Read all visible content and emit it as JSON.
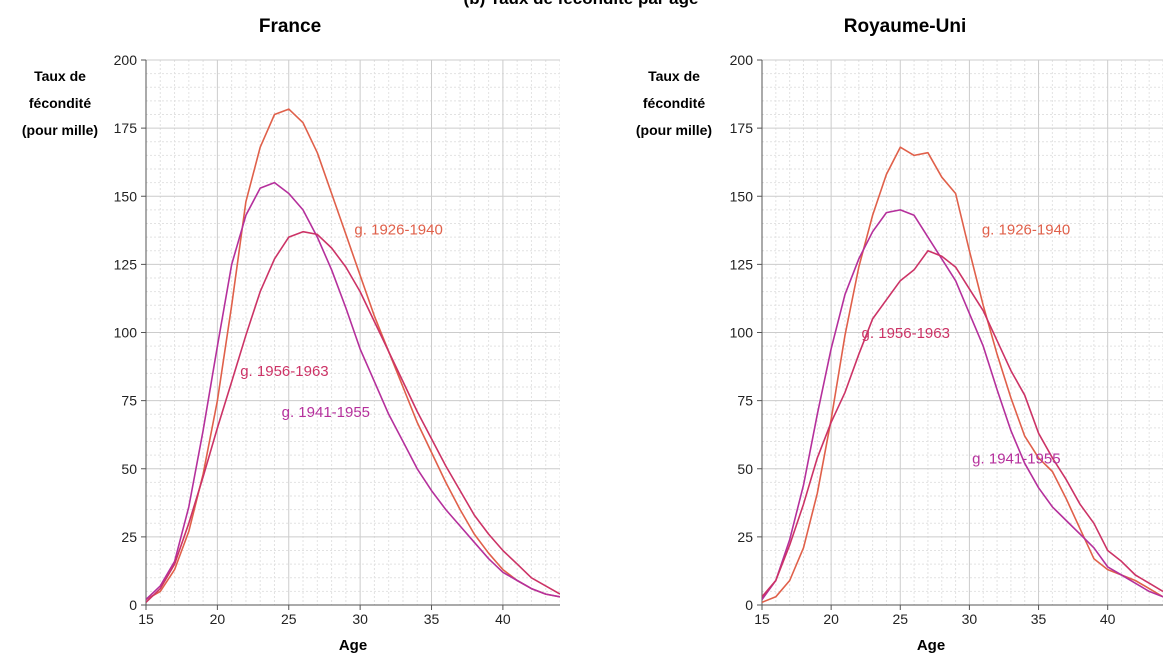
{
  "figure": {
    "top_title": "(b) Taux de fécondité par âge"
  },
  "chart_data": [
    {
      "type": "line",
      "title": "France",
      "xlabel": "Age",
      "ylabel_lines": [
        "Taux de",
        "fécondité",
        "(pour mille)"
      ],
      "xlim": [
        15,
        44
      ],
      "ylim": [
        0,
        200
      ],
      "x_ticks": [
        15,
        20,
        25,
        30,
        35,
        40
      ],
      "y_ticks": [
        0,
        25,
        50,
        75,
        100,
        125,
        150,
        175,
        200
      ],
      "grid": true,
      "series": [
        {
          "name": "g. 1926-1940",
          "color": "#e0604a",
          "x": [
            15,
            16,
            17,
            18,
            19,
            20,
            21,
            22,
            23,
            24,
            25,
            26,
            27,
            28,
            29,
            30,
            31,
            32,
            33,
            34,
            35,
            36,
            37,
            38,
            39,
            40,
            41,
            42,
            43,
            44
          ],
          "values": [
            2,
            5,
            13,
            27,
            48,
            75,
            110,
            148,
            168,
            180,
            182,
            177,
            166,
            151,
            136,
            121,
            106,
            93,
            80,
            67,
            56,
            45,
            35,
            26,
            19,
            13,
            9,
            6,
            4,
            3
          ]
        },
        {
          "name": "g. 1941-1955",
          "color": "#b5309c",
          "x": [
            15,
            16,
            17,
            18,
            19,
            20,
            21,
            22,
            23,
            24,
            25,
            26,
            27,
            28,
            29,
            30,
            31,
            32,
            33,
            34,
            35,
            36,
            37,
            38,
            39,
            40,
            41,
            42,
            43,
            44
          ],
          "values": [
            2,
            7,
            16,
            36,
            64,
            95,
            125,
            143,
            153,
            155,
            151,
            145,
            135,
            123,
            109,
            94,
            82,
            70,
            60,
            50,
            42,
            35,
            29,
            23,
            17,
            12,
            9,
            6,
            4,
            3
          ]
        },
        {
          "name": "g. 1956-1963",
          "color": "#cc3366",
          "x": [
            15,
            16,
            17,
            18,
            19,
            20,
            21,
            22,
            23,
            24,
            25,
            26,
            27,
            28,
            29,
            30,
            31,
            32,
            33,
            34,
            35,
            36,
            37,
            38,
            39,
            40,
            41,
            42,
            43,
            44
          ],
          "values": [
            1,
            6,
            15,
            30,
            47,
            65,
            82,
            99,
            115,
            127,
            135,
            137,
            136,
            131,
            124,
            115,
            104,
            93,
            82,
            71,
            61,
            51,
            42,
            33,
            26,
            20,
            15,
            10,
            7,
            4
          ]
        }
      ],
      "annotations": [
        {
          "text": "g. 1926-1940",
          "series": "g. 1926-1940",
          "x": 29.6,
          "y": 136
        },
        {
          "text": "g. 1956-1963",
          "series": "g. 1956-1963",
          "x": 21.6,
          "y": 84
        },
        {
          "text": "g. 1941-1955",
          "series": "g. 1941-1955",
          "x": 24.5,
          "y": 69
        }
      ]
    },
    {
      "type": "line",
      "title": "Royaume-Uni",
      "xlabel": "Age",
      "ylabel_lines": [
        "Taux de",
        "fécondité",
        "(pour mille)"
      ],
      "xlim": [
        15,
        44
      ],
      "ylim": [
        0,
        200
      ],
      "x_ticks": [
        15,
        20,
        25,
        30,
        35,
        40
      ],
      "y_ticks": [
        0,
        25,
        50,
        75,
        100,
        125,
        150,
        175,
        200
      ],
      "grid": true,
      "series": [
        {
          "name": "g. 1926-1940",
          "color": "#e0604a",
          "x": [
            15,
            16,
            17,
            18,
            19,
            20,
            21,
            22,
            23,
            24,
            25,
            26,
            27,
            28,
            29,
            30,
            31,
            32,
            33,
            34,
            35,
            36,
            37,
            38,
            39,
            40,
            41,
            42,
            43,
            44
          ],
          "values": [
            1,
            3,
            9,
            21,
            41,
            68,
            99,
            124,
            143,
            158,
            168,
            165,
            166,
            157,
            151,
            130,
            110,
            92,
            76,
            62,
            54,
            49,
            39,
            28,
            17,
            13,
            11,
            9,
            6,
            3
          ]
        },
        {
          "name": "g. 1941-1955",
          "color": "#b5309c",
          "x": [
            15,
            16,
            17,
            18,
            19,
            20,
            21,
            22,
            23,
            24,
            25,
            26,
            27,
            28,
            29,
            30,
            31,
            32,
            33,
            34,
            35,
            36,
            37,
            38,
            39,
            40,
            41,
            42,
            43,
            44
          ],
          "values": [
            2,
            9,
            24,
            44,
            70,
            94,
            114,
            127,
            137,
            144,
            145,
            143,
            135,
            127,
            119,
            107,
            95,
            79,
            64,
            52,
            43,
            36,
            31,
            26,
            21,
            14,
            11,
            8,
            5,
            3
          ]
        },
        {
          "name": "g. 1956-1963",
          "color": "#cc3366",
          "x": [
            15,
            16,
            17,
            18,
            19,
            20,
            21,
            22,
            23,
            24,
            25,
            26,
            27,
            28,
            29,
            30,
            31,
            32,
            33,
            34,
            35,
            36,
            37,
            38,
            39,
            40,
            41,
            42,
            43,
            44
          ],
          "values": [
            3,
            9,
            22,
            37,
            54,
            67,
            78,
            92,
            105,
            112,
            119,
            123,
            130,
            128,
            124,
            116,
            108,
            97,
            86,
            77,
            63,
            54,
            46,
            37,
            30,
            20,
            16,
            11,
            8,
            5
          ]
        }
      ],
      "annotations": [
        {
          "text": "g. 1926-1940",
          "series": "g. 1926-1940",
          "x": 30.9,
          "y": 136
        },
        {
          "text": "g. 1956-1963",
          "series": "g. 1956-1963",
          "x": 22.2,
          "y": 98
        },
        {
          "text": "g. 1941-1955",
          "series": "g. 1941-1955",
          "x": 30.2,
          "y": 52
        }
      ]
    }
  ]
}
